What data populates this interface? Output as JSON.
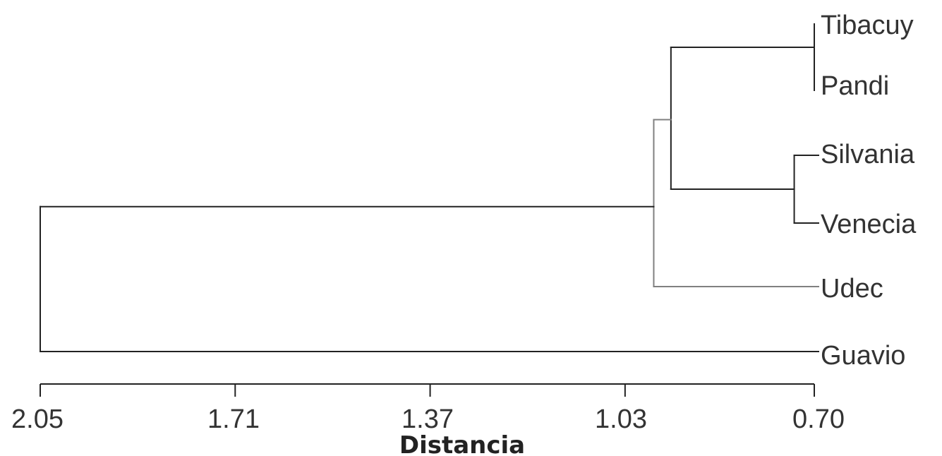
{
  "chart_data": {
    "type": "dendrogram",
    "xlabel": "Distancia",
    "xlim": [
      2.05,
      0.7
    ],
    "ticks": [
      "2.05",
      "1.71",
      "1.37",
      "1.03",
      "0.70"
    ],
    "tick_values": [
      2.05,
      1.71,
      1.37,
      1.03,
      0.7
    ],
    "leaves": [
      "Tibacuy",
      "Pandi",
      "Silvania",
      "Venecia",
      "Udec",
      "Guavio"
    ],
    "merges": [
      {
        "children": [
          "Tibacuy",
          "Pandi"
        ],
        "height": 0.7
      },
      {
        "children": [
          "Silvania",
          "Venecia"
        ],
        "height": 0.735
      },
      {
        "children": [
          "Tibacuy-Pandi",
          "Silvania-Venecia"
        ],
        "height": 0.95
      },
      {
        "children": [
          "Tibacuy-Pandi-Silvania-Venecia",
          "Udec"
        ],
        "height": 0.98
      },
      {
        "children": [
          "Tibacuy-Pandi-Silvania-Venecia-Udec",
          "Guavio"
        ],
        "height": 2.05
      }
    ],
    "colors": {
      "line": "#222222",
      "udec_branch": "#808080"
    }
  }
}
